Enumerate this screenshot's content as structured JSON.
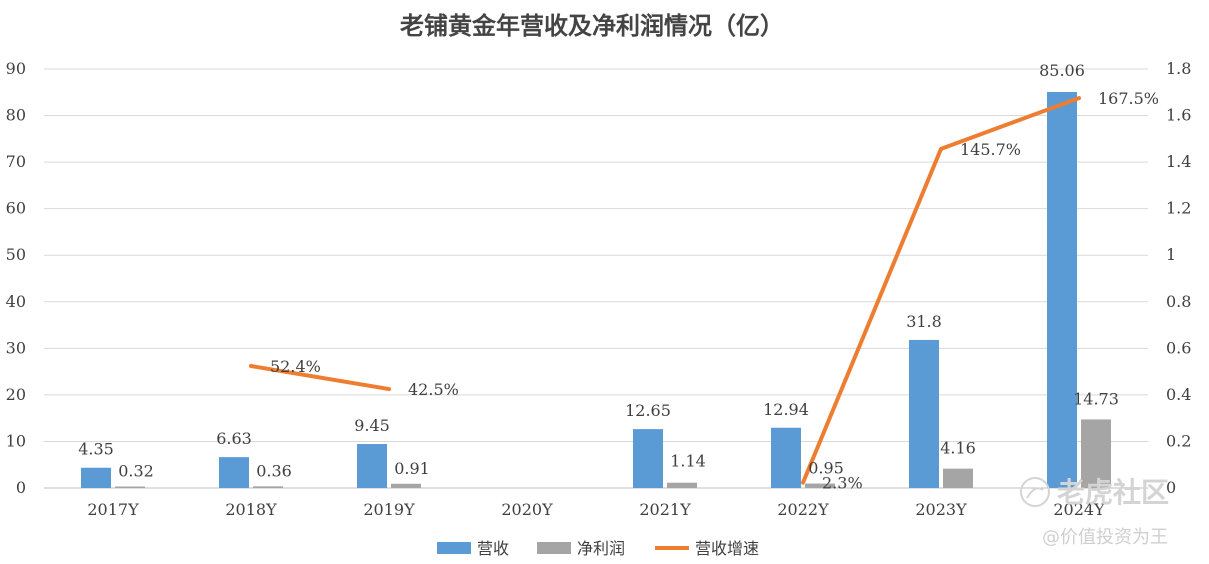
{
  "chart_data": {
    "type": "bar",
    "title": "老铺黄金年营收及净利润情况（亿）",
    "categories": [
      "2017Y",
      "2018Y",
      "2019Y",
      "2020Y",
      "2021Y",
      "2022Y",
      "2023Y",
      "2024Y"
    ],
    "y_left": {
      "ticks": [
        "0",
        "10",
        "20",
        "30",
        "40",
        "50",
        "60",
        "70",
        "80",
        "90"
      ],
      "range": [
        0,
        90
      ]
    },
    "y_right": {
      "ticks": [
        "0",
        "0.2",
        "0.4",
        "0.6",
        "0.8",
        "1",
        "1.2",
        "1.4",
        "1.6",
        "1.8"
      ],
      "range": [
        0,
        1.8
      ]
    },
    "grid": true,
    "legend_position": "bottom",
    "series": [
      {
        "name": "营收",
        "type": "bar",
        "axis": "left",
        "color": "#5b9bd5",
        "values": [
          4.35,
          6.63,
          9.45,
          null,
          12.65,
          12.94,
          31.8,
          85.06
        ],
        "labels": [
          "4.35",
          "6.63",
          "9.45",
          "",
          "12.65",
          "12.94",
          "31.8",
          "85.06"
        ]
      },
      {
        "name": "净利润",
        "type": "bar",
        "axis": "left",
        "color": "#a5a5a5",
        "values": [
          0.32,
          0.36,
          0.91,
          null,
          1.14,
          0.95,
          4.16,
          14.73
        ],
        "labels": [
          "0.32",
          "0.36",
          "0.91",
          "",
          "1.14",
          "0.95",
          "4.16",
          "14.73"
        ]
      },
      {
        "name": "营收增速",
        "type": "line",
        "axis": "right",
        "color": "#ed7d31",
        "values": [
          null,
          0.524,
          0.425,
          null,
          null,
          0.023,
          1.457,
          1.675
        ],
        "labels": [
          "",
          "52.4%",
          "42.5%",
          "",
          "",
          "2.3%",
          "145.7%",
          "167.5%"
        ]
      }
    ]
  },
  "watermark": {
    "brand": "老虎社区",
    "sub": "@价值投资为王"
  }
}
